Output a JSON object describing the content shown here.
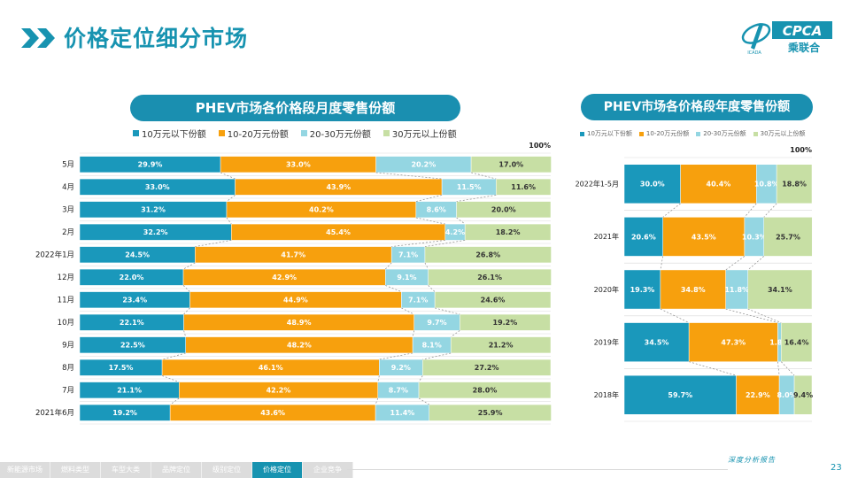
{
  "page_title": "价格定位细分市场",
  "logo": {
    "text": "CPCA",
    "subtext": "乘联合",
    "small": "ICADA"
  },
  "colors": {
    "c1": "#1a98bb",
    "c2": "#f7a00d",
    "c3": "#94d6e2",
    "c4": "#c7dfa4",
    "accent": "#1793b0",
    "title_pill": "#1a8fb0"
  },
  "legend": [
    "10万元以下份额",
    "10-20万元份额",
    "20-30万元份额",
    "30万元以上份额"
  ],
  "pct100": "100%",
  "chart_data": [
    {
      "type": "bar",
      "stacked": "100%",
      "orientation": "horizontal",
      "title": "PHEV市场各价格段月度零售份额",
      "categories": [
        "5月",
        "4月",
        "3月",
        "2月",
        "2022年1月",
        "12月",
        "11月",
        "10月",
        "9月",
        "8月",
        "7月",
        "2021年6月"
      ],
      "series": [
        {
          "name": "10万元以下份额",
          "values": [
            29.9,
            33.0,
            31.2,
            32.2,
            24.5,
            22.0,
            23.4,
            22.1,
            22.5,
            17.5,
            21.1,
            19.2
          ]
        },
        {
          "name": "10-20万元份额",
          "values": [
            33.0,
            43.9,
            40.2,
            45.4,
            41.7,
            42.9,
            44.9,
            48.9,
            48.2,
            46.1,
            42.2,
            43.6
          ]
        },
        {
          "name": "20-30万元份额",
          "values": [
            20.2,
            11.5,
            8.6,
            4.2,
            7.1,
            9.1,
            7.1,
            9.7,
            8.1,
            9.2,
            8.7,
            11.4
          ]
        },
        {
          "name": "30万元以上份额",
          "values": [
            17.0,
            11.6,
            20.0,
            18.2,
            26.8,
            26.1,
            24.6,
            19.2,
            21.2,
            27.2,
            28.0,
            25.9
          ]
        }
      ],
      "legend_position": "top"
    },
    {
      "type": "bar",
      "stacked": "100%",
      "orientation": "horizontal",
      "title": "PHEV市场各价格段年度零售份额",
      "categories": [
        "2022年1-5月",
        "2021年",
        "2020年",
        "2019年",
        "2018年"
      ],
      "series": [
        {
          "name": "10万元以下份额",
          "values": [
            30.0,
            20.6,
            19.3,
            34.5,
            59.7
          ]
        },
        {
          "name": "10-20万元份额",
          "values": [
            40.4,
            43.5,
            34.8,
            47.3,
            22.9
          ]
        },
        {
          "name": "20-30万元份额",
          "values": [
            10.8,
            10.3,
            11.8,
            1.8,
            8.0
          ]
        },
        {
          "name": "30万元以上份额",
          "values": [
            18.8,
            25.7,
            34.1,
            16.4,
            9.4
          ]
        }
      ],
      "legend_position": "top"
    }
  ],
  "footer": {
    "nav": [
      "新能源市场",
      "燃料类型",
      "车型大类",
      "品牌定位",
      "级别定位",
      "价格定位",
      "企业竞争"
    ],
    "active_index": 5,
    "tag": "深度分析报告",
    "page_number": "23"
  }
}
